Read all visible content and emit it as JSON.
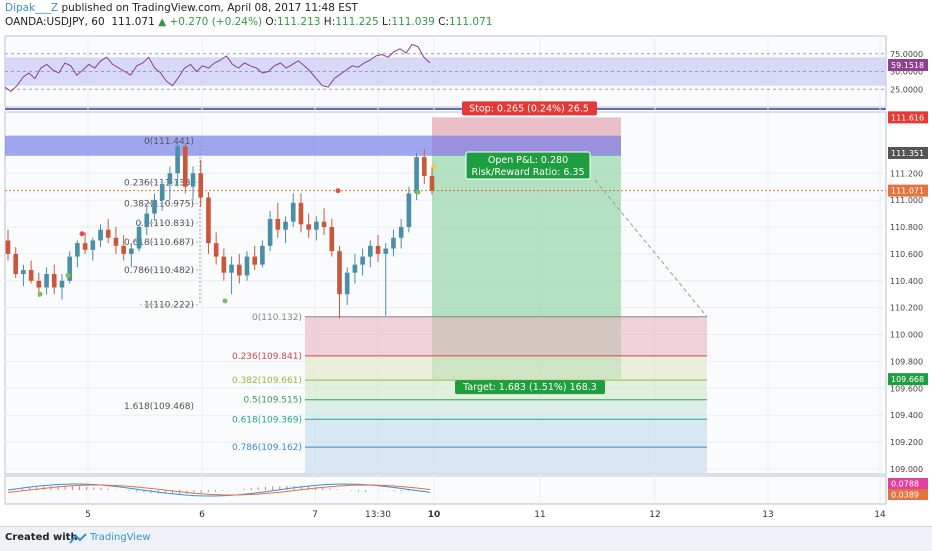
{
  "header": {
    "author": "Dipak___Z",
    "published": " published on TradingView.com, April 08, 2017 11:48 EST",
    "symbol": "OANDA:USDJPY, 60",
    "last": "111.071",
    "change": "▲ +0.270 (+0.24%)",
    "o_label": "O:",
    "o": "111.213",
    "h_label": "H:",
    "h": "111.225",
    "l_label": "L:",
    "l": "111.039",
    "c_label": "C:",
    "c": "111.071"
  },
  "footer": {
    "created": "Created with",
    "brand": "TradingView"
  },
  "colors": {
    "background": "#ffffff",
    "grid": "#e9edf2",
    "up": "#4a8fa8",
    "down": "#c9583b",
    "stop_zone": "#e8b4bd",
    "target_zone": "#97d6a9",
    "rsi_band": "#c9c9f3",
    "rsi_line": "#8e3f8e",
    "stop_label": "#e53935",
    "target_label": "#1f9e3f",
    "resistance_band": "#6f78e8"
  },
  "chart_data": {
    "type": "candlestick",
    "symbol": "OANDA:USDJPY",
    "timeframe": "60",
    "x_ticks": [
      "5",
      "6",
      "7",
      "13:30",
      "10",
      "11",
      "12",
      "13",
      "14"
    ],
    "y_ticks": [
      "111.200",
      "111.000",
      "110.800",
      "110.600",
      "110.400",
      "110.200",
      "110.000",
      "109.800",
      "109.600",
      "109.400",
      "109.200",
      "109.000"
    ],
    "price_markers": [
      {
        "label": "111.616",
        "value": 111.616,
        "color": "#e53935"
      },
      {
        "label": "111.351",
        "value": 111.351,
        "color": "#555555"
      },
      {
        "label": "111.071",
        "value": 111.071,
        "color": "#e4733d"
      },
      {
        "label": "109.668",
        "value": 109.668,
        "color": "#1f9e3f"
      }
    ],
    "fib_lower": [
      {
        "label": "0(110.132)",
        "value": 110.132,
        "color": "#888888"
      },
      {
        "label": "0.236(109.841)",
        "value": 109.841,
        "color": "#d24545"
      },
      {
        "label": "0.382(109.661)",
        "value": 109.661,
        "color": "#8ebb3e"
      },
      {
        "label": "0.5(109.515)",
        "value": 109.515,
        "color": "#36a04a"
      },
      {
        "label": "0.618(109.369)",
        "value": 109.369,
        "color": "#22a58f"
      },
      {
        "label": "0.786(109.162)",
        "value": 109.162,
        "color": "#3a8fc5"
      }
    ],
    "fib_upper": [
      {
        "label": "0(111.441)",
        "value": 111.441
      },
      {
        "label": "0.236(111.133)",
        "value": 111.133
      },
      {
        "label": "0.382(110.975)",
        "value": 110.975
      },
      {
        "label": "0.5(110.831)",
        "value": 110.831
      },
      {
        "label": "0.618(110.687)",
        "value": 110.687
      },
      {
        "label": "0.786(110.482)",
        "value": 110.482
      },
      {
        "label": "1(110.222)",
        "value": 110.222
      },
      {
        "label": "1.618(109.468)",
        "value": 109.468
      }
    ],
    "trade": {
      "entry": 111.351,
      "stop": 111.616,
      "target": 109.668,
      "stop_label": "Stop: 0.265 (0.24%) 26.5",
      "pnl_label": "Open P&L: 0.280",
      "rr_label": "Risk/Reward Ratio: 6.35",
      "target_label": "Target: 1.683 (1.51%) 168.3"
    },
    "resistance_zone": [
      111.33,
      111.48
    ],
    "rsi": {
      "ticks": [
        "75.0000",
        "50.0000",
        "25.0000"
      ],
      "current": "59.1518",
      "band": [
        30,
        70
      ],
      "values": [
        28,
        22,
        30,
        42,
        48,
        40,
        55,
        60,
        52,
        48,
        62,
        58,
        45,
        52,
        60,
        55,
        65,
        70,
        60,
        55,
        50,
        45,
        58,
        62,
        70,
        55,
        48,
        36,
        30,
        42,
        55,
        60,
        50,
        58,
        55,
        62,
        66,
        72,
        60,
        55,
        62,
        58,
        55,
        48,
        50,
        58,
        62,
        55,
        60,
        65,
        58,
        50,
        40,
        30,
        28,
        40,
        46,
        52,
        58,
        56,
        62,
        66,
        72,
        74,
        70,
        78,
        82,
        76,
        88,
        85,
        70,
        62
      ]
    },
    "macd": {
      "macd_value": "0.0788",
      "signal_value": "0.0389"
    },
    "candles": [
      [
        110.7,
        110.78,
        110.55,
        110.6
      ],
      [
        110.6,
        110.65,
        110.42,
        110.45
      ],
      [
        110.45,
        110.52,
        110.36,
        110.48
      ],
      [
        110.48,
        110.55,
        110.38,
        110.4
      ],
      [
        110.4,
        110.46,
        110.28,
        110.35
      ],
      [
        110.35,
        110.5,
        110.3,
        110.45
      ],
      [
        110.45,
        110.52,
        110.3,
        110.35
      ],
      [
        110.35,
        110.45,
        110.26,
        110.4
      ],
      [
        110.4,
        110.62,
        110.38,
        110.58
      ],
      [
        110.58,
        110.7,
        110.5,
        110.68
      ],
      [
        110.68,
        110.76,
        110.6,
        110.63
      ],
      [
        110.63,
        110.72,
        110.55,
        110.7
      ],
      [
        110.7,
        110.82,
        110.65,
        110.78
      ],
      [
        110.78,
        110.86,
        110.68,
        110.72
      ],
      [
        110.72,
        110.8,
        110.6,
        110.66
      ],
      [
        110.66,
        110.74,
        110.55,
        110.6
      ],
      [
        110.6,
        110.68,
        110.5,
        110.64
      ],
      [
        110.64,
        110.82,
        110.62,
        110.8
      ],
      [
        110.8,
        110.95,
        110.74,
        110.9
      ],
      [
        110.9,
        111.05,
        110.85,
        111.0
      ],
      [
        111.0,
        111.15,
        110.92,
        111.12
      ],
      [
        111.12,
        111.25,
        111.0,
        111.2
      ],
      [
        111.2,
        111.44,
        111.1,
        111.4
      ],
      [
        111.4,
        111.42,
        111.05,
        111.1
      ],
      [
        111.1,
        111.25,
        111.0,
        111.2
      ],
      [
        111.2,
        111.3,
        110.95,
        111.02
      ],
      [
        111.02,
        111.06,
        110.6,
        110.68
      ],
      [
        110.68,
        110.76,
        110.52,
        110.58
      ],
      [
        110.58,
        110.64,
        110.4,
        110.46
      ],
      [
        110.46,
        110.58,
        110.3,
        110.52
      ],
      [
        110.52,
        110.6,
        110.38,
        110.44
      ],
      [
        110.44,
        110.62,
        110.4,
        110.58
      ],
      [
        110.58,
        110.66,
        110.48,
        110.52
      ],
      [
        110.52,
        110.7,
        110.5,
        110.66
      ],
      [
        110.66,
        110.92,
        110.62,
        110.86
      ],
      [
        110.86,
        110.98,
        110.72,
        110.78
      ],
      [
        110.78,
        110.88,
        110.68,
        110.84
      ],
      [
        110.84,
        111.05,
        110.8,
        110.98
      ],
      [
        110.98,
        111.05,
        110.76,
        110.82
      ],
      [
        110.82,
        110.9,
        110.72,
        110.78
      ],
      [
        110.78,
        110.88,
        110.7,
        110.84
      ],
      [
        110.84,
        110.94,
        110.74,
        110.8
      ],
      [
        110.8,
        110.86,
        110.58,
        110.62
      ],
      [
        110.62,
        110.66,
        110.12,
        110.3
      ],
      [
        110.3,
        110.5,
        110.22,
        110.46
      ],
      [
        110.46,
        110.6,
        110.38,
        110.52
      ],
      [
        110.52,
        110.64,
        110.44,
        110.58
      ],
      [
        110.58,
        110.7,
        110.5,
        110.66
      ],
      [
        110.66,
        110.74,
        110.54,
        110.6
      ],
      [
        110.6,
        110.68,
        110.14,
        110.64
      ],
      [
        110.64,
        110.78,
        110.58,
        110.72
      ],
      [
        110.72,
        110.86,
        110.64,
        110.8
      ],
      [
        110.8,
        111.1,
        110.76,
        111.05
      ],
      [
        111.05,
        111.35,
        111.0,
        111.32
      ],
      [
        111.32,
        111.38,
        111.12,
        111.18
      ],
      [
        111.18,
        111.25,
        111.04,
        111.07
      ]
    ]
  }
}
